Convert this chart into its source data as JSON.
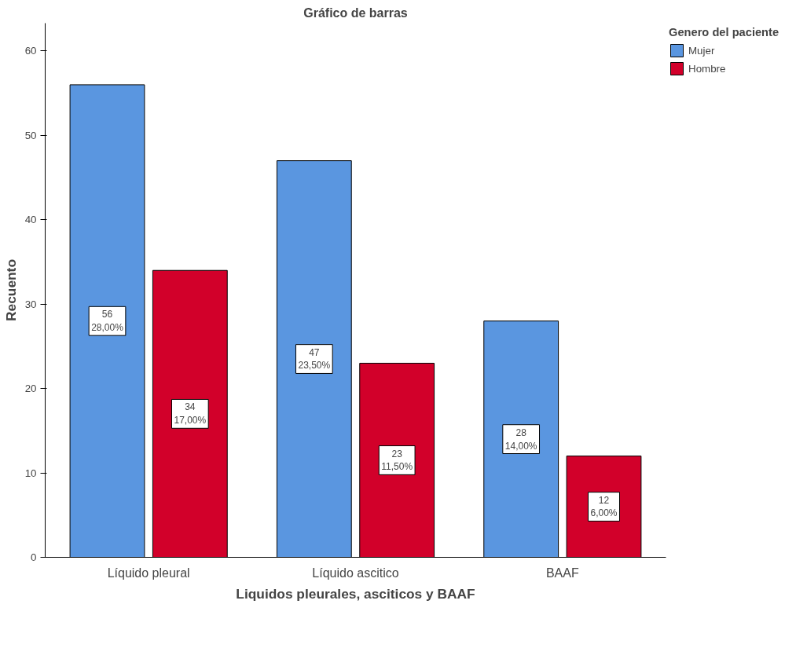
{
  "chart_data": {
    "type": "bar",
    "title": "Gráfico de barras",
    "xlabel": "Liquidos pleurales, asciticos y BAAF",
    "ylabel": "Recuento",
    "legend_title": "Genero del paciente",
    "categories": [
      "Líquido pleural",
      "Líquido ascitico",
      "BAAF"
    ],
    "series": [
      {
        "name": "Mujer",
        "color": "#5a96e0",
        "values": [
          56,
          47,
          28
        ],
        "value_labels": [
          "56\n28,00%",
          "47\n23,50%",
          "28\n14,00%"
        ]
      },
      {
        "name": "Hombre",
        "color": "#d2002a",
        "values": [
          34,
          23,
          12
        ],
        "value_labels": [
          "34\n17,00%",
          "23\n11,50%",
          "12\n6,00%"
        ]
      }
    ],
    "ylim": [
      0,
      63.3
    ],
    "yticks": [
      0,
      10,
      20,
      30,
      40,
      50,
      60
    ],
    "grid": false,
    "legend": "top right"
  }
}
